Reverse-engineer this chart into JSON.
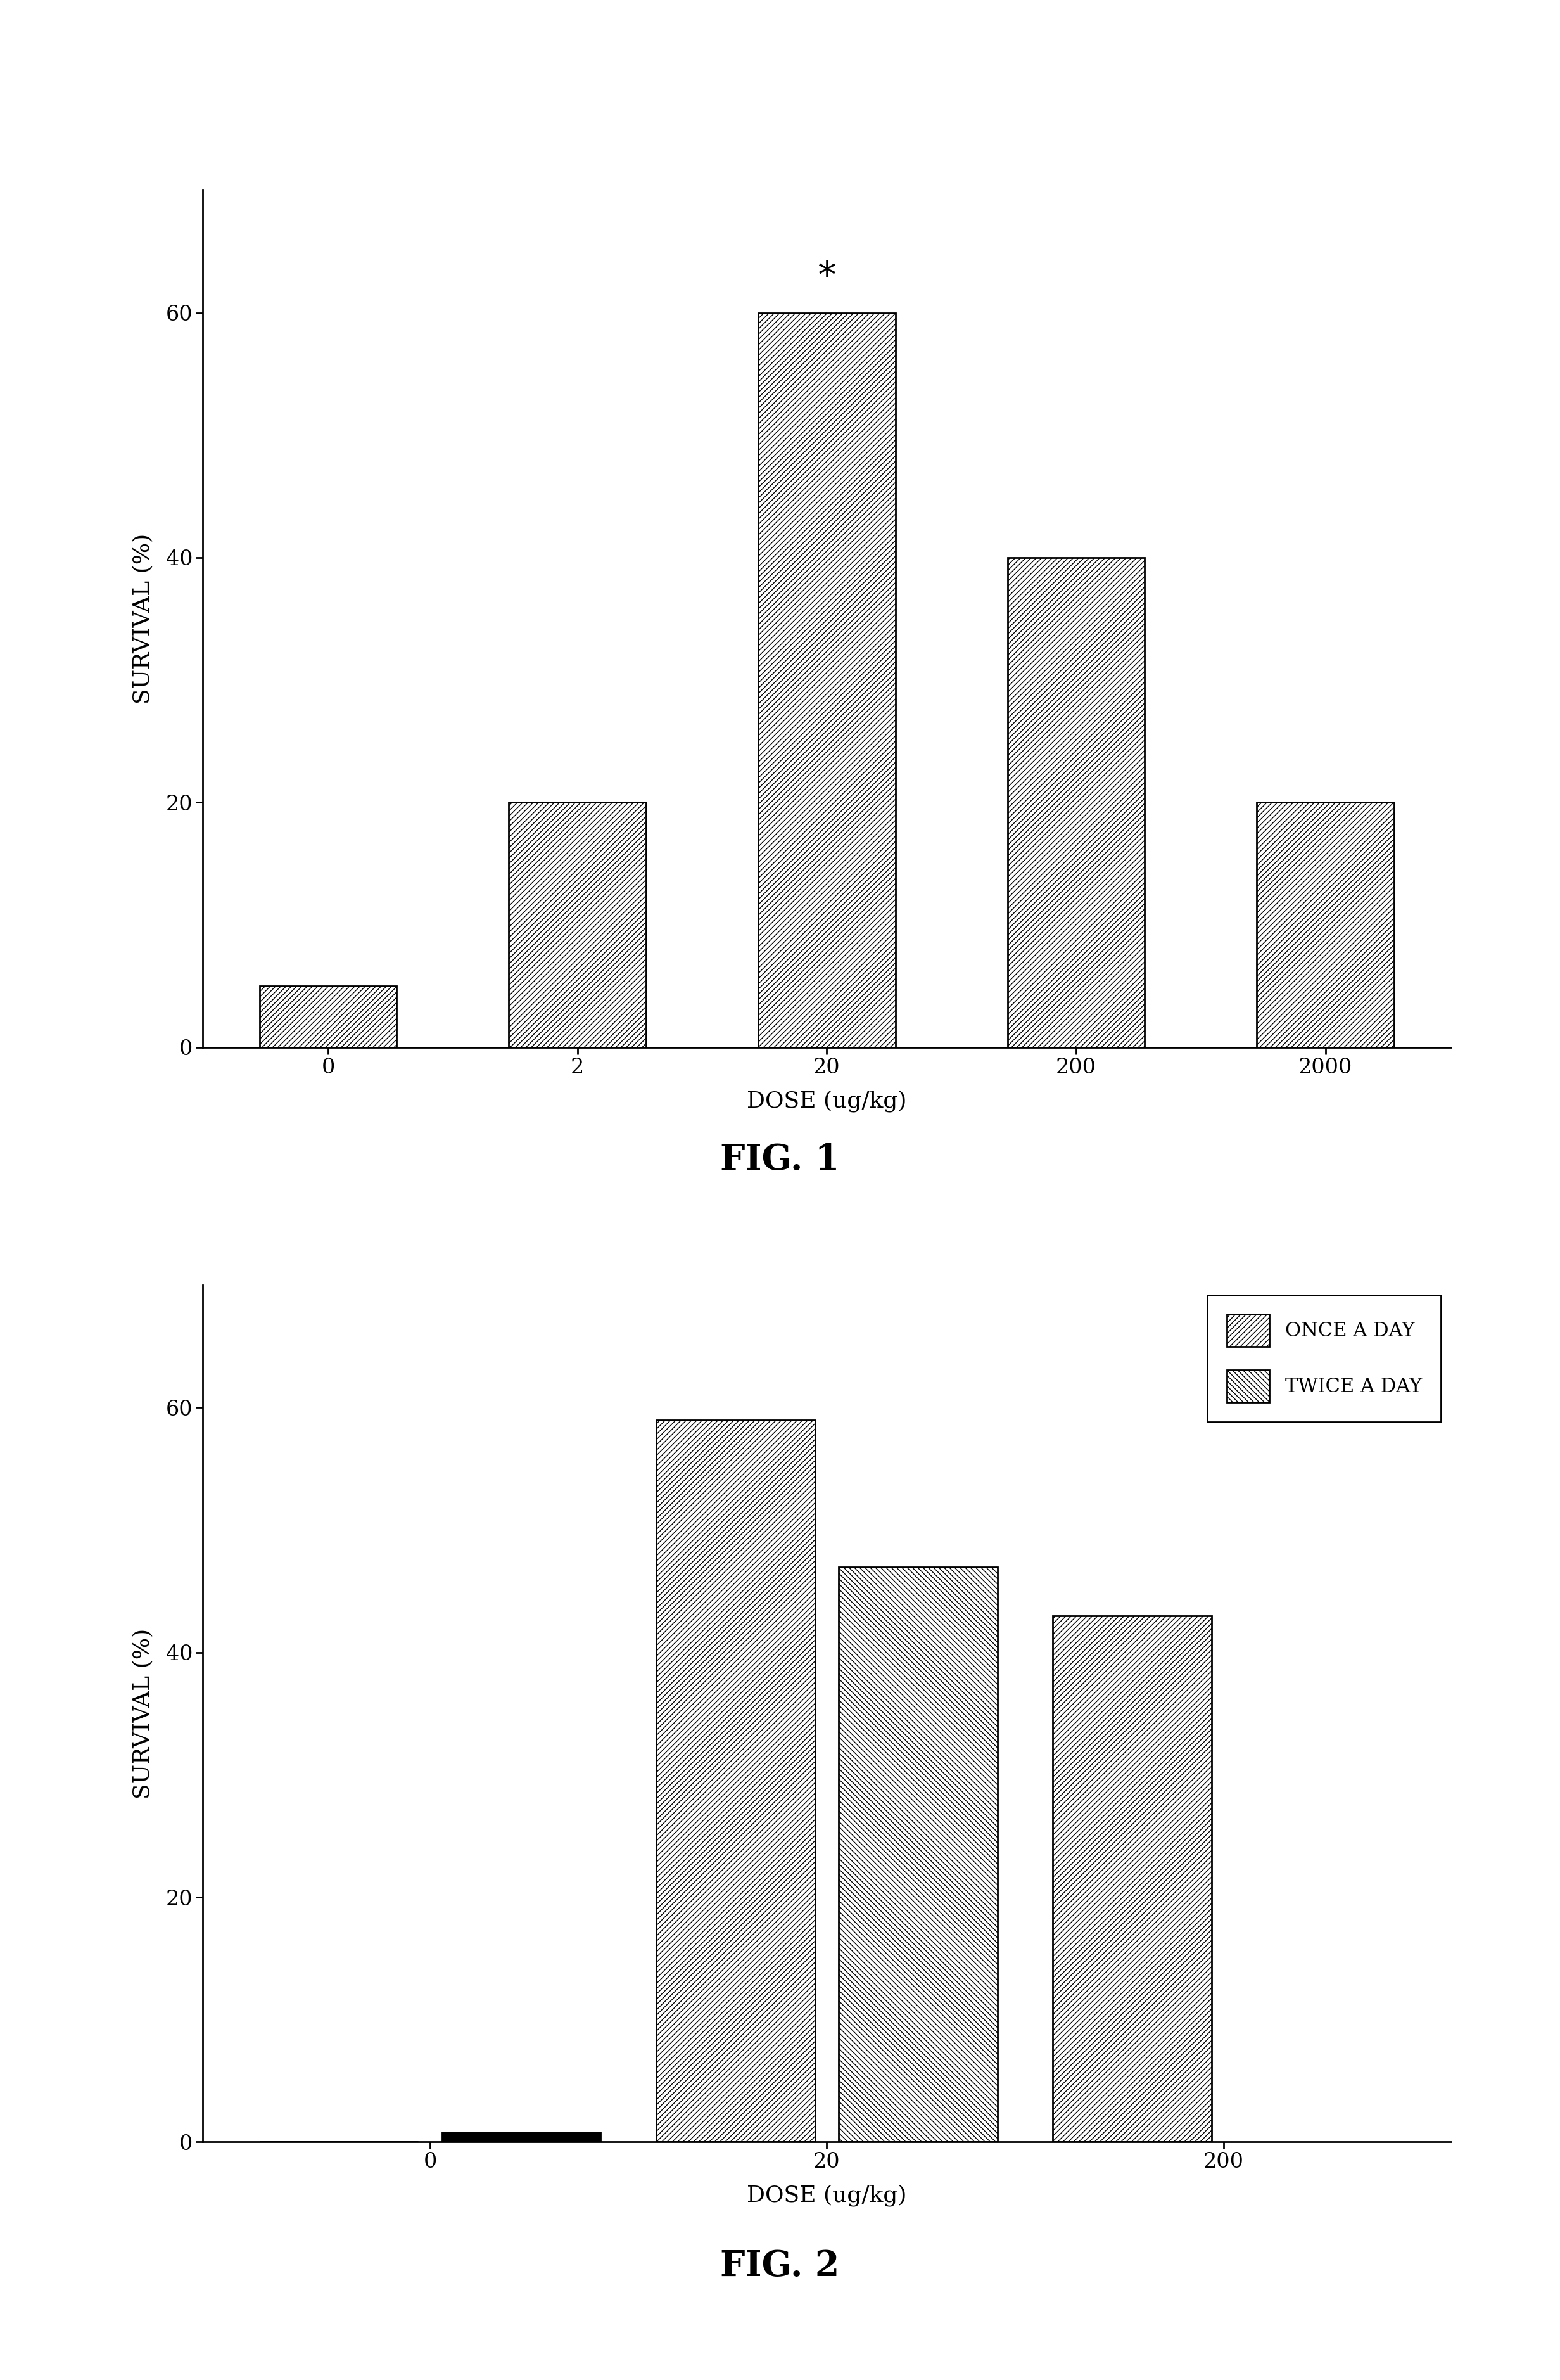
{
  "fig1": {
    "categories": [
      "0",
      "2",
      "20",
      "200",
      "2000"
    ],
    "values": [
      5,
      20,
      60,
      40,
      20
    ],
    "xlabel": "DOSE (ug/kg)",
    "ylabel": "SURVIVAL (%)",
    "ylim": [
      0,
      70
    ],
    "yticks": [
      0,
      20,
      40,
      60
    ],
    "title": "FIG. 1",
    "star_bar": 2,
    "hatch": "////"
  },
  "fig2": {
    "categories": [
      "0",
      "20",
      "200"
    ],
    "once_values": [
      0,
      59,
      43
    ],
    "twice_values": [
      0.8,
      47,
      0
    ],
    "xlabel": "DOSE (ug/kg)",
    "ylabel": "SURVIVAL (%)",
    "ylim": [
      0,
      70
    ],
    "yticks": [
      0,
      20,
      40,
      60
    ],
    "title": "FIG. 2",
    "hatch_once": "////",
    "hatch_twice": "\\\\\\\\",
    "legend_once": "ONCE A DAY",
    "legend_twice": "TWICE A DAY"
  },
  "background_color": "#ffffff",
  "bar_edge_color": "#000000",
  "bar_face_color": "#ffffff",
  "axis_label_fontsize": 26,
  "tick_fontsize": 24,
  "legend_fontsize": 22,
  "star_fontsize": 40,
  "fig_label_fontsize": 40
}
